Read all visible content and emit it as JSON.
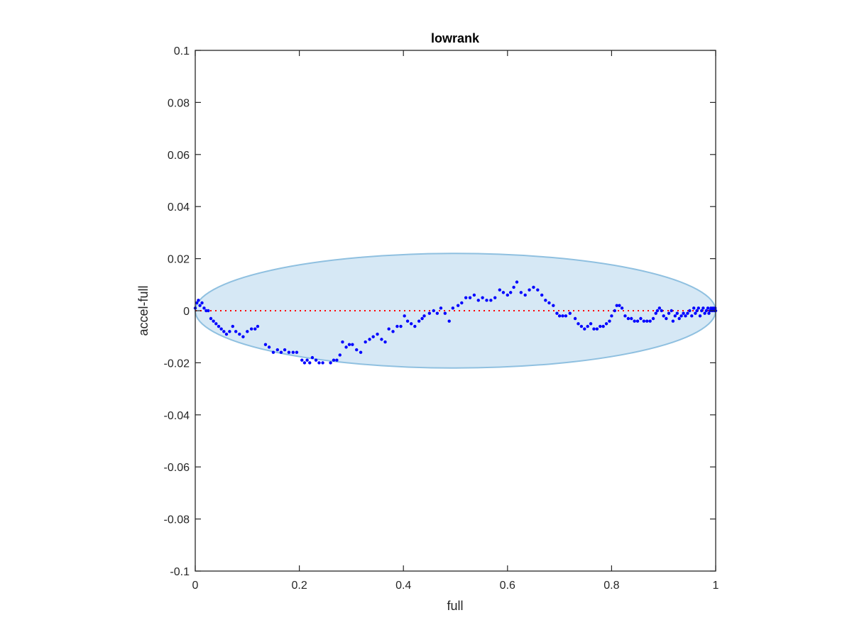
{
  "chart_data": {
    "type": "scatter",
    "title": "lowrank",
    "xlabel": "full",
    "ylabel": "accel-full",
    "xlim": [
      0,
      1
    ],
    "ylim": [
      -0.1,
      0.1
    ],
    "xticks": [
      0,
      0.2,
      0.4,
      0.6,
      0.8,
      1
    ],
    "xtick_labels": [
      "0",
      "0.2",
      "0.4",
      "0.6",
      "0.8",
      "1"
    ],
    "yticks": [
      -0.1,
      -0.08,
      -0.06,
      -0.04,
      -0.02,
      0,
      0.02,
      0.04,
      0.06,
      0.08,
      0.1
    ],
    "ytick_labels": [
      "-0.1",
      "-0.08",
      "-0.06",
      "-0.04",
      "-0.02",
      "0",
      "0.02",
      "0.04",
      "0.06",
      "0.08",
      "0.1"
    ],
    "grid": false,
    "colors": {
      "points": "#0000ff",
      "reference_line": "#ff0000",
      "ellipse_fill": "#d6e8f5",
      "ellipse_stroke": "#8fc0e0",
      "axes": "#262626"
    },
    "reference_line": {
      "y": 0,
      "style": "dotted"
    },
    "ellipse": {
      "cx": 0.5,
      "cy": 0,
      "rx": 0.5,
      "ry": 0.022
    },
    "series": [
      {
        "points": [
          [
            0.0,
            0.001
          ],
          [
            0.003,
            0.003
          ],
          [
            0.006,
            0.004
          ],
          [
            0.009,
            0.002
          ],
          [
            0.013,
            0.003
          ],
          [
            0.017,
            0.001
          ],
          [
            0.021,
            0.0
          ],
          [
            0.025,
            0.0
          ],
          [
            0.03,
            -0.003
          ],
          [
            0.035,
            -0.004
          ],
          [
            0.04,
            -0.005
          ],
          [
            0.045,
            -0.006
          ],
          [
            0.05,
            -0.007
          ],
          [
            0.055,
            -0.008
          ],
          [
            0.06,
            -0.009
          ],
          [
            0.066,
            -0.008
          ],
          [
            0.072,
            -0.006
          ],
          [
            0.078,
            -0.008
          ],
          [
            0.085,
            -0.009
          ],
          [
            0.092,
            -0.01
          ],
          [
            0.1,
            -0.008
          ],
          [
            0.108,
            -0.007
          ],
          [
            0.115,
            -0.007
          ],
          [
            0.12,
            -0.006
          ],
          [
            0.135,
            -0.013
          ],
          [
            0.142,
            -0.014
          ],
          [
            0.15,
            -0.016
          ],
          [
            0.158,
            -0.015
          ],
          [
            0.165,
            -0.016
          ],
          [
            0.172,
            -0.015
          ],
          [
            0.18,
            -0.016
          ],
          [
            0.188,
            -0.016
          ],
          [
            0.195,
            -0.016
          ],
          [
            0.205,
            -0.019
          ],
          [
            0.21,
            -0.02
          ],
          [
            0.215,
            -0.019
          ],
          [
            0.22,
            -0.02
          ],
          [
            0.225,
            -0.018
          ],
          [
            0.232,
            -0.019
          ],
          [
            0.238,
            -0.02
          ],
          [
            0.245,
            -0.02
          ],
          [
            0.26,
            -0.02
          ],
          [
            0.266,
            -0.019
          ],
          [
            0.272,
            -0.019
          ],
          [
            0.278,
            -0.017
          ],
          [
            0.283,
            -0.012
          ],
          [
            0.29,
            -0.014
          ],
          [
            0.296,
            -0.013
          ],
          [
            0.302,
            -0.013
          ],
          [
            0.31,
            -0.015
          ],
          [
            0.318,
            -0.016
          ],
          [
            0.327,
            -0.012
          ],
          [
            0.335,
            -0.011
          ],
          [
            0.342,
            -0.01
          ],
          [
            0.35,
            -0.009
          ],
          [
            0.358,
            -0.011
          ],
          [
            0.365,
            -0.012
          ],
          [
            0.372,
            -0.007
          ],
          [
            0.38,
            -0.008
          ],
          [
            0.388,
            -0.006
          ],
          [
            0.395,
            -0.006
          ],
          [
            0.402,
            -0.002
          ],
          [
            0.408,
            -0.004
          ],
          [
            0.415,
            -0.005
          ],
          [
            0.422,
            -0.006
          ],
          [
            0.43,
            -0.004
          ],
          [
            0.436,
            -0.003
          ],
          [
            0.44,
            -0.002
          ],
          [
            0.45,
            -0.001
          ],
          [
            0.458,
            0.0
          ],
          [
            0.465,
            -0.001
          ],
          [
            0.472,
            0.001
          ],
          [
            0.48,
            -0.001
          ],
          [
            0.488,
            -0.004
          ],
          [
            0.495,
            0.001
          ],
          [
            0.505,
            0.002
          ],
          [
            0.512,
            0.003
          ],
          [
            0.52,
            0.005
          ],
          [
            0.528,
            0.005
          ],
          [
            0.536,
            0.006
          ],
          [
            0.544,
            0.004
          ],
          [
            0.552,
            0.005
          ],
          [
            0.56,
            0.004
          ],
          [
            0.568,
            0.004
          ],
          [
            0.576,
            0.005
          ],
          [
            0.585,
            0.008
          ],
          [
            0.592,
            0.007
          ],
          [
            0.6,
            0.006
          ],
          [
            0.606,
            0.007
          ],
          [
            0.612,
            0.009
          ],
          [
            0.618,
            0.011
          ],
          [
            0.626,
            0.007
          ],
          [
            0.634,
            0.006
          ],
          [
            0.642,
            0.008
          ],
          [
            0.65,
            0.009
          ],
          [
            0.658,
            0.008
          ],
          [
            0.666,
            0.006
          ],
          [
            0.673,
            0.004
          ],
          [
            0.68,
            0.003
          ],
          [
            0.688,
            0.002
          ],
          [
            0.695,
            -0.001
          ],
          [
            0.7,
            -0.002
          ],
          [
            0.706,
            -0.002
          ],
          [
            0.712,
            -0.002
          ],
          [
            0.72,
            -0.001
          ],
          [
            0.73,
            -0.003
          ],
          [
            0.736,
            -0.005
          ],
          [
            0.742,
            -0.006
          ],
          [
            0.748,
            -0.007
          ],
          [
            0.754,
            -0.006
          ],
          [
            0.76,
            -0.005
          ],
          [
            0.766,
            -0.007
          ],
          [
            0.772,
            -0.007
          ],
          [
            0.778,
            -0.006
          ],
          [
            0.784,
            -0.006
          ],
          [
            0.79,
            -0.005
          ],
          [
            0.796,
            -0.004
          ],
          [
            0.8,
            -0.002
          ],
          [
            0.806,
            0.0
          ],
          [
            0.81,
            0.002
          ],
          [
            0.815,
            0.002
          ],
          [
            0.82,
            0.001
          ],
          [
            0.826,
            -0.002
          ],
          [
            0.832,
            -0.003
          ],
          [
            0.838,
            -0.003
          ],
          [
            0.844,
            -0.004
          ],
          [
            0.85,
            -0.004
          ],
          [
            0.856,
            -0.003
          ],
          [
            0.862,
            -0.004
          ],
          [
            0.868,
            -0.004
          ],
          [
            0.874,
            -0.004
          ],
          [
            0.88,
            -0.003
          ],
          [
            0.885,
            -0.001
          ],
          [
            0.888,
            0.0
          ],
          [
            0.892,
            0.001
          ],
          [
            0.896,
            0.0
          ],
          [
            0.9,
            -0.002
          ],
          [
            0.905,
            -0.003
          ],
          [
            0.91,
            -0.001
          ],
          [
            0.915,
            0.0
          ],
          [
            0.918,
            -0.004
          ],
          [
            0.922,
            -0.002
          ],
          [
            0.926,
            -0.001
          ],
          [
            0.93,
            -0.003
          ],
          [
            0.934,
            -0.002
          ],
          [
            0.938,
            -0.001
          ],
          [
            0.942,
            -0.002
          ],
          [
            0.946,
            -0.001
          ],
          [
            0.95,
            0.0
          ],
          [
            0.954,
            -0.002
          ],
          [
            0.958,
            0.001
          ],
          [
            0.961,
            -0.001
          ],
          [
            0.964,
            0.0
          ],
          [
            0.967,
            0.001
          ],
          [
            0.97,
            -0.002
          ],
          [
            0.973,
            0.0
          ],
          [
            0.976,
            0.001
          ],
          [
            0.979,
            -0.001
          ],
          [
            0.982,
            0.0
          ],
          [
            0.985,
            0.001
          ],
          [
            0.987,
            -0.001
          ],
          [
            0.989,
            0.0
          ],
          [
            0.991,
            0.001
          ],
          [
            0.993,
            0.0
          ],
          [
            0.995,
            0.001
          ],
          [
            0.997,
            0.0
          ],
          [
            0.999,
            0.001
          ],
          [
            1.0,
            0.0
          ]
        ]
      }
    ]
  }
}
